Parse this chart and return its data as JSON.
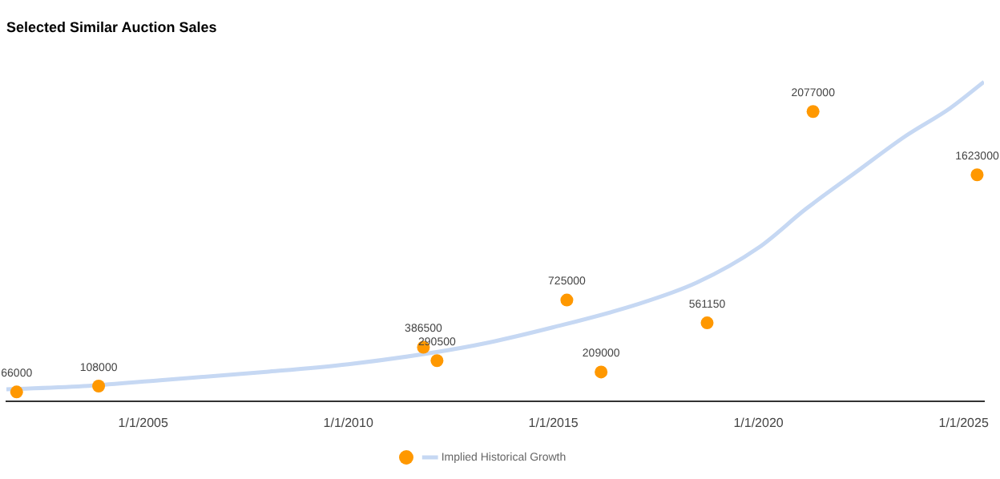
{
  "chart_data": {
    "type": "scatter",
    "title": "Selected Similar Auction Sales",
    "series": [
      {
        "color": "#ff9800",
        "marker": "circle",
        "x": [
          "2001-12",
          "2003-12",
          "2011-11",
          "2012-03",
          "2015-05",
          "2016-03",
          "2018-10",
          "2021-05",
          "2025-05"
        ],
        "values": [
          66000,
          108000,
          386500,
          290500,
          725000,
          209000,
          561150,
          2077000,
          1623000
        ],
        "value_labels": [
          "66000",
          "108000",
          "386500",
          "290500",
          "725000",
          "209000",
          "561150",
          "2077000",
          "1623000"
        ]
      },
      {
        "type": "line",
        "name": "Implied Historical Growth",
        "color": "#c6d8f3",
        "line_style": "solid",
        "marker": "none",
        "x": [
          "2001-09",
          "2003-09",
          "2005-06",
          "2008-01",
          "2010-01",
          "2012-01",
          "2013-06",
          "2015-01",
          "2017-01",
          "2018-07",
          "2020-01",
          "2021-03",
          "2022-06",
          "2023-08",
          "2024-09",
          "2025-07"
        ],
        "values": [
          85000,
          110000,
          150000,
          210000,
          265000,
          345000,
          420000,
          530000,
          690000,
          850000,
          1100000,
          1380000,
          1650000,
          1900000,
          2100000,
          2290000
        ]
      }
    ],
    "xlim": [
      "2001-09",
      "2025-07"
    ],
    "xticks": [
      {
        "value": "2005-01-01",
        "label": "1/1/2005"
      },
      {
        "value": "2010-01-01",
        "label": "1/1/2010"
      },
      {
        "value": "2015-01-01",
        "label": "1/1/2015"
      },
      {
        "value": "2020-01-01",
        "label": "1/1/2020"
      },
      {
        "value": "2025-01-01",
        "label": "1/1/2025"
      }
    ],
    "tick_labels": "x",
    "grid": false,
    "legend": "bottom"
  }
}
